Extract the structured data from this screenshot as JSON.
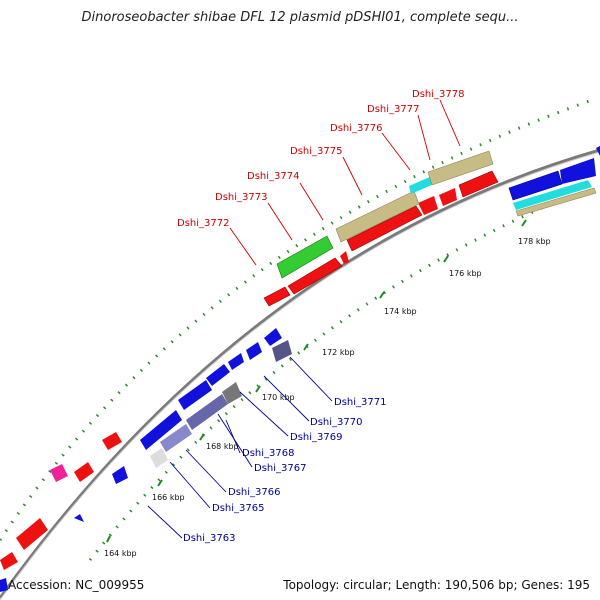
{
  "title": "Dinoroseobacter shibae DFL 12 plasmid pDSHI01, complete sequ...",
  "footer": {
    "accession": "Accession: NC_009955",
    "summary": "Topology: circular; Length: 190,506 bp; Genes: 195"
  },
  "ticks": [
    "164 kbp",
    "166 kbp",
    "168 kbp",
    "170 kbp",
    "172 kbp",
    "174 kbp",
    "176 kbp",
    "178 kbp"
  ],
  "gene_labels_forward": [
    "Dshi_3772",
    "Dshi_3773",
    "Dshi_3774",
    "Dshi_3775",
    "Dshi_3776",
    "Dshi_3777",
    "Dshi_3778"
  ],
  "gene_labels_reverse": [
    "Dshi_3763",
    "Dshi_3765",
    "Dshi_3766",
    "Dshi_3767",
    "Dshi_3768",
    "Dshi_3769",
    "Dshi_3770",
    "Dshi_3771"
  ],
  "colors": {
    "forward_gene": "#ee1111",
    "reverse_gene": "#1111dd",
    "forward_label": "#cc0000",
    "reverse_label": "#000099",
    "backbone": "#888888",
    "tick_mark": "#228822",
    "feature_khaki": "#c8bc86",
    "feature_green": "#33cc33",
    "feature_cyan": "#22dddd",
    "feature_magenta": "#ee2299",
    "feature_slate": "#555588"
  }
}
